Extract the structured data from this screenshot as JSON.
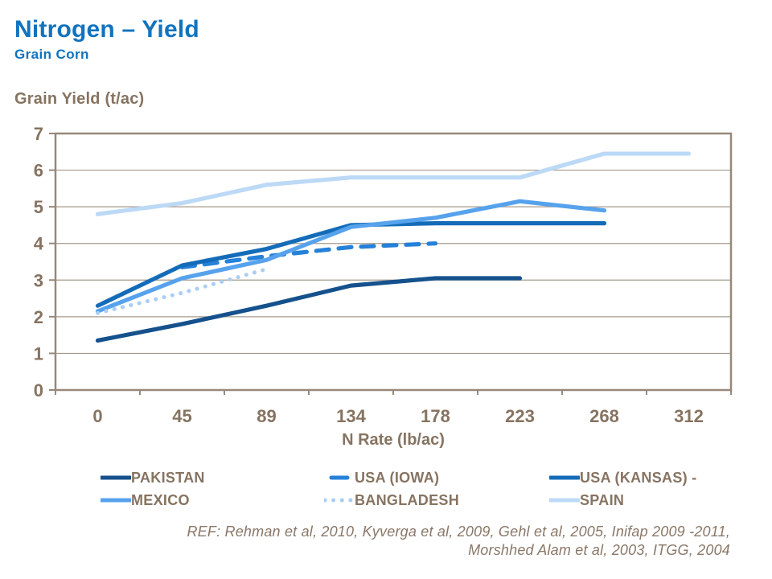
{
  "header": {
    "title": "Nitrogen – Yield",
    "subtitle": "Grain Corn"
  },
  "footer": {
    "line1": "REF: Rehman et al, 2010, Kyverga et al, 2009, Gehl et al, 2005, Inifap 2009 -2011,",
    "line2": "Morshhed Alam et al, 2003, ITGG, 2004"
  },
  "colors": {
    "title_blue": "#1173BE",
    "label_taupe": "#867361",
    "gridline": "#A59889",
    "frame": "#97887A",
    "background": "#FFFFFF"
  },
  "chart_data": {
    "type": "line",
    "title": "Nitrogen – Yield, Grain Corn",
    "xlabel": "N Rate (lb/ac)",
    "ylabel": "Grain Yield (t/ac)",
    "categories": [
      "0",
      "45",
      "89",
      "134",
      "178",
      "223",
      "268",
      "312"
    ],
    "ylim": [
      0,
      7
    ],
    "ytick_step": 1,
    "grid": true,
    "legend_position": "bottom",
    "series": [
      {
        "name": "PAKISTAN",
        "color": "#15518C",
        "style": "solid",
        "values": [
          1.35,
          1.8,
          2.3,
          2.85,
          3.05,
          3.05,
          null,
          null
        ]
      },
      {
        "name": "USA (IOWA)",
        "color": "#2581D9",
        "style": "dashed",
        "values": [
          null,
          3.35,
          3.65,
          3.9,
          4.0,
          null,
          null,
          null
        ]
      },
      {
        "name": "USA (KANSAS) -",
        "color": "#146CB8",
        "style": "solid",
        "values": [
          2.3,
          3.4,
          3.85,
          4.5,
          4.55,
          4.55,
          4.55,
          null
        ]
      },
      {
        "name": "MEXICO",
        "color": "#56A2EC",
        "style": "solid",
        "values": [
          2.15,
          3.05,
          3.55,
          4.45,
          4.7,
          5.15,
          4.9,
          null
        ]
      },
      {
        "name": "BANGLADESH",
        "color": "#A8CEF5",
        "style": "dotted",
        "values": [
          2.1,
          2.65,
          3.3,
          null,
          null,
          null,
          null,
          null
        ]
      },
      {
        "name": "SPAIN",
        "color": "#BCD9F6",
        "style": "solid",
        "values": [
          4.8,
          5.1,
          5.6,
          5.8,
          5.8,
          5.8,
          6.45,
          6.45
        ]
      }
    ]
  }
}
